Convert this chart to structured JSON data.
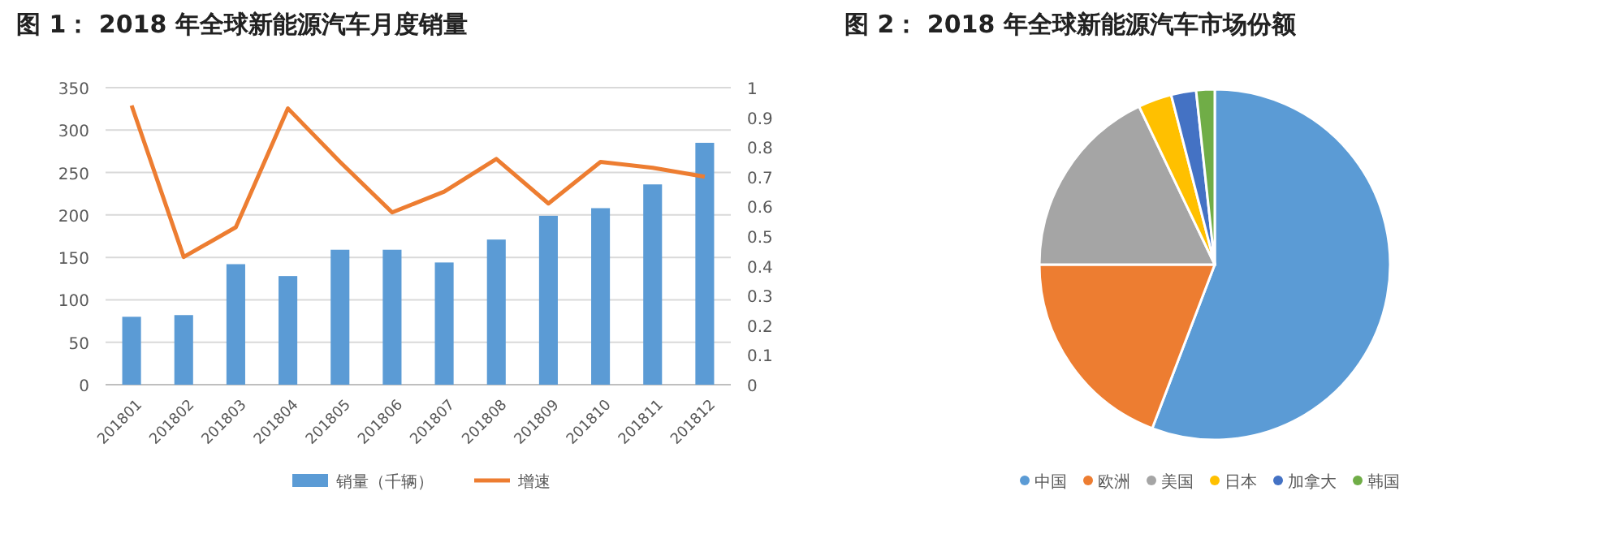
{
  "chart_data": [
    {
      "type": "bar",
      "title": "图 1： 2018 年全球新能源汽车月度销量",
      "categories": [
        "201801",
        "201802",
        "201803",
        "201804",
        "201805",
        "201806",
        "201807",
        "201808",
        "201809",
        "201810",
        "201811",
        "201812"
      ],
      "series": [
        {
          "name": "销量（千辆）",
          "type": "bar",
          "color": "#5b9bd5",
          "values": [
            80,
            82,
            142,
            128,
            159,
            159,
            144,
            171,
            199,
            208,
            236,
            285
          ]
        },
        {
          "name": "增速",
          "type": "line",
          "axis": "y2",
          "color": "#ed7d31",
          "values": [
            0.94,
            0.43,
            0.53,
            0.93,
            0.75,
            0.58,
            0.65,
            0.76,
            0.61,
            0.75,
            0.73,
            0.7
          ]
        }
      ],
      "ylim": [
        0,
        350
      ],
      "yticks": [
        0,
        50,
        100,
        150,
        200,
        250,
        300,
        350
      ],
      "y2lim": [
        0,
        1
      ],
      "y2ticks": [
        0,
        0.1,
        0.2,
        0.3,
        0.4,
        0.5,
        0.6,
        0.7,
        0.8,
        0.9,
        1
      ],
      "grid": "y",
      "legend": "bottom",
      "marker": "none"
    },
    {
      "type": "pie",
      "title": "图 2： 2018 年全球新能源汽车市场份额",
      "categories": [
        "中国",
        "欧洲",
        "美国",
        "日本",
        "加拿大",
        "韩国"
      ],
      "values": [
        55.8,
        19.2,
        17.9,
        3.1,
        2.3,
        1.7
      ],
      "colors": [
        "#5b9bd5",
        "#ed7d31",
        "#a5a5a5",
        "#ffc000",
        "#4472c4",
        "#70ad47"
      ],
      "legend": "bottom"
    }
  ]
}
